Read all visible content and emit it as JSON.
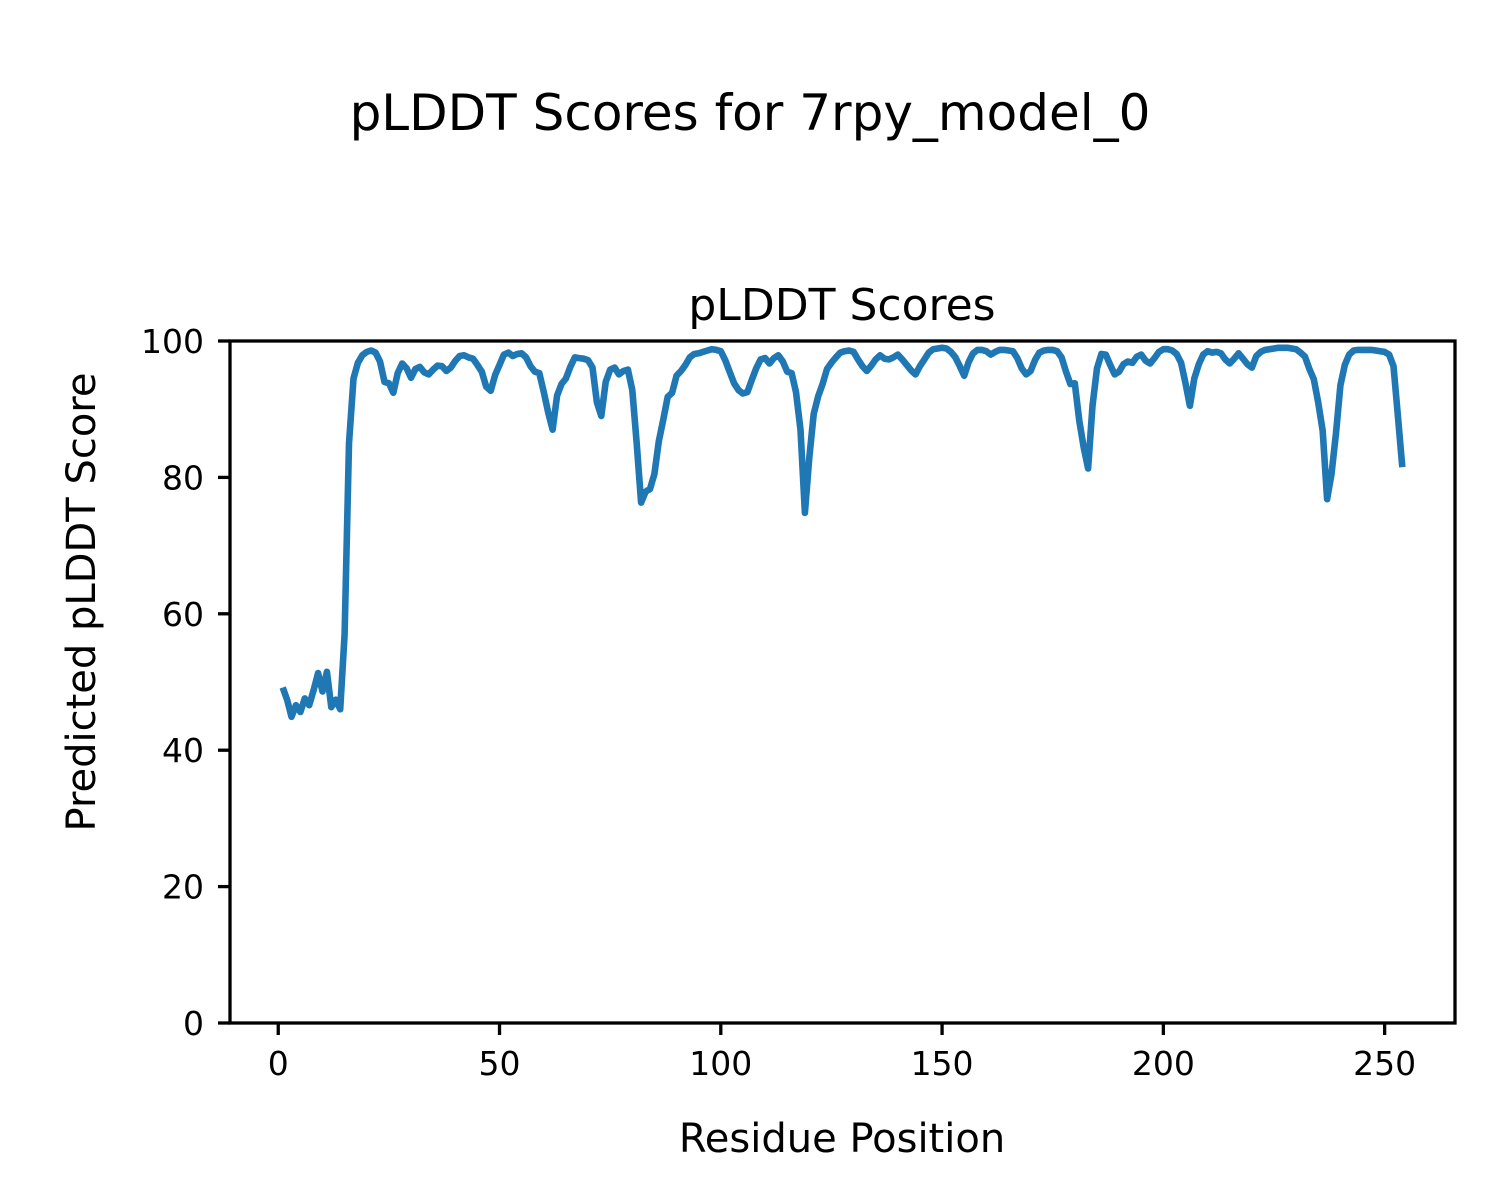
{
  "figure": {
    "title": "pLDDT Scores for 7rpy_model_0",
    "background_color": "#ffffff",
    "text_color": "#000000"
  },
  "chart_data": {
    "type": "line",
    "title": "pLDDT Scores",
    "xlabel": "Residue Position",
    "ylabel": "Predicted pLDDT Score",
    "xlim": [
      -10.9,
      265.9
    ],
    "ylim": [
      0,
      100
    ],
    "xticks": [
      0,
      50,
      100,
      150,
      200,
      250
    ],
    "yticks": [
      0,
      20,
      40,
      60,
      80,
      100
    ],
    "grid": false,
    "legend": null,
    "line_color": "#1f77b4",
    "x_step": 1,
    "series": [
      {
        "name": "pLDDT",
        "x_start": 1,
        "values": [
          49.2,
          47.4,
          44.9,
          46.6,
          45.6,
          47.6,
          46.6,
          48.8,
          51.3,
          48.6,
          51.5,
          46.3,
          47.4,
          46.0,
          57.0,
          85.0,
          94.5,
          96.8,
          97.9,
          98.4,
          98.6,
          98.3,
          97.0,
          94.0,
          93.8,
          92.4,
          95.3,
          96.7,
          96.0,
          94.6,
          95.9,
          96.2,
          95.4,
          95.1,
          95.8,
          96.4,
          96.3,
          95.6,
          96.1,
          97.1,
          97.8,
          97.9,
          97.6,
          97.4,
          96.5,
          95.5,
          93.3,
          92.7,
          95.0,
          96.5,
          98.0,
          98.3,
          97.8,
          98.1,
          98.2,
          97.6,
          96.3,
          95.5,
          95.3,
          92.5,
          89.5,
          87.0,
          92.0,
          93.7,
          94.5,
          96.2,
          97.6,
          97.5,
          97.4,
          97.2,
          96.1,
          91.0,
          89.0,
          94.0,
          95.8,
          96.1,
          95.1,
          95.6,
          95.8,
          92.8,
          85.0,
          76.3,
          77.9,
          78.3,
          80.5,
          85.3,
          88.5,
          91.8,
          92.4,
          94.9,
          95.6,
          96.5,
          97.6,
          98.1,
          98.2,
          98.4,
          98.6,
          98.8,
          98.7,
          98.5,
          97.2,
          95.5,
          93.8,
          92.8,
          92.3,
          92.5,
          94.3,
          96.0,
          97.3,
          97.5,
          96.7,
          97.5,
          97.9,
          97.0,
          95.5,
          95.3,
          92.5,
          87.0,
          74.8,
          82.9,
          89.3,
          91.9,
          93.7,
          95.9,
          96.8,
          97.6,
          98.3,
          98.5,
          98.6,
          98.4,
          97.3,
          96.3,
          95.6,
          96.4,
          97.3,
          97.9,
          97.4,
          97.3,
          97.6,
          98.0,
          97.3,
          96.5,
          95.7,
          95.1,
          96.3,
          97.3,
          98.3,
          98.8,
          98.9,
          99.0,
          98.9,
          98.4,
          97.6,
          96.3,
          94.9,
          96.9,
          98.2,
          98.7,
          98.7,
          98.5,
          98.0,
          98.4,
          98.7,
          98.7,
          98.6,
          98.5,
          97.5,
          96.0,
          95.1,
          95.6,
          97.2,
          98.3,
          98.6,
          98.7,
          98.7,
          98.5,
          97.6,
          95.5,
          93.7,
          93.8,
          88.3,
          84.4,
          81.3,
          90.5,
          96.0,
          98.1,
          98.0,
          96.5,
          95.1,
          95.5,
          96.6,
          97.0,
          96.8,
          97.7,
          98.0,
          97.1,
          96.7,
          97.5,
          98.4,
          98.8,
          98.8,
          98.6,
          98.1,
          96.8,
          93.8,
          90.5,
          94.5,
          96.6,
          98.0,
          98.5,
          98.3,
          98.4,
          98.2,
          97.3,
          96.7,
          97.4,
          98.2,
          97.4,
          96.6,
          96.1,
          97.8,
          98.4,
          98.7,
          98.8,
          98.9,
          99.0,
          99.0,
          99.0,
          98.9,
          98.8,
          98.3,
          97.7,
          95.9,
          94.4,
          91.0,
          86.8,
          76.8,
          80.5,
          86.5,
          93.5,
          96.5,
          98.0,
          98.6,
          98.7,
          98.7,
          98.7,
          98.7,
          98.6,
          98.5,
          98.4,
          98.0,
          96.3,
          89.0,
          81.5
        ]
      }
    ]
  }
}
